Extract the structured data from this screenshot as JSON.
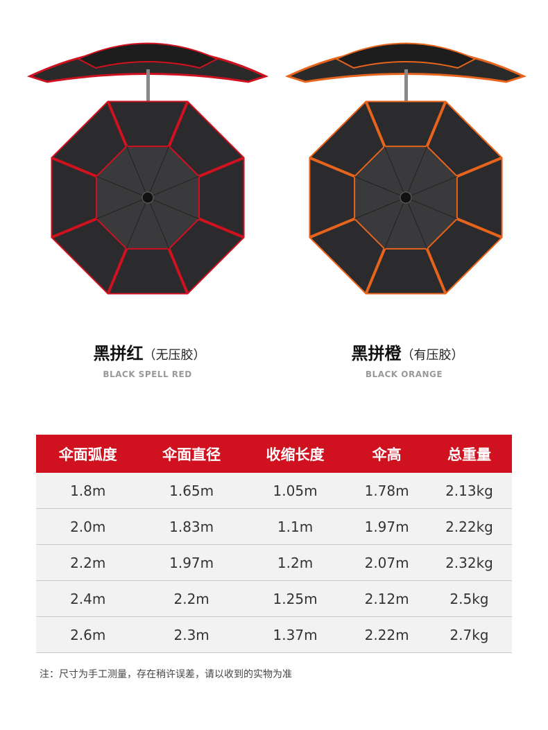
{
  "variants": [
    {
      "name": "黑拼红",
      "note": "（无压胶）",
      "english": "BLACK SPELL RED",
      "accent": "#d0111f"
    },
    {
      "name": "黑拼橙",
      "note": "（有压胶）",
      "english": "BLACK ORANGE",
      "accent": "#e8641c"
    }
  ],
  "table": {
    "headers": [
      "伞面弧度",
      "伞面直径",
      "收缩长度",
      "伞高",
      "总重量"
    ],
    "rows": [
      [
        "1.8m",
        "1.65m",
        "1.05m",
        "1.78m",
        "2.13kg"
      ],
      [
        "2.0m",
        "1.83m",
        "1.1m",
        "1.97m",
        "2.22kg"
      ],
      [
        "2.2m",
        "1.97m",
        "1.2m",
        "2.07m",
        "2.32kg"
      ],
      [
        "2.4m",
        "2.2m",
        "1.25m",
        "2.12m",
        "2.5kg"
      ],
      [
        "2.6m",
        "2.3m",
        "1.37m",
        "2.22m",
        "2.7kg"
      ]
    ]
  },
  "footnote": "注：尺寸为手工测量，存在稍许误差，请以收到的实物为准"
}
